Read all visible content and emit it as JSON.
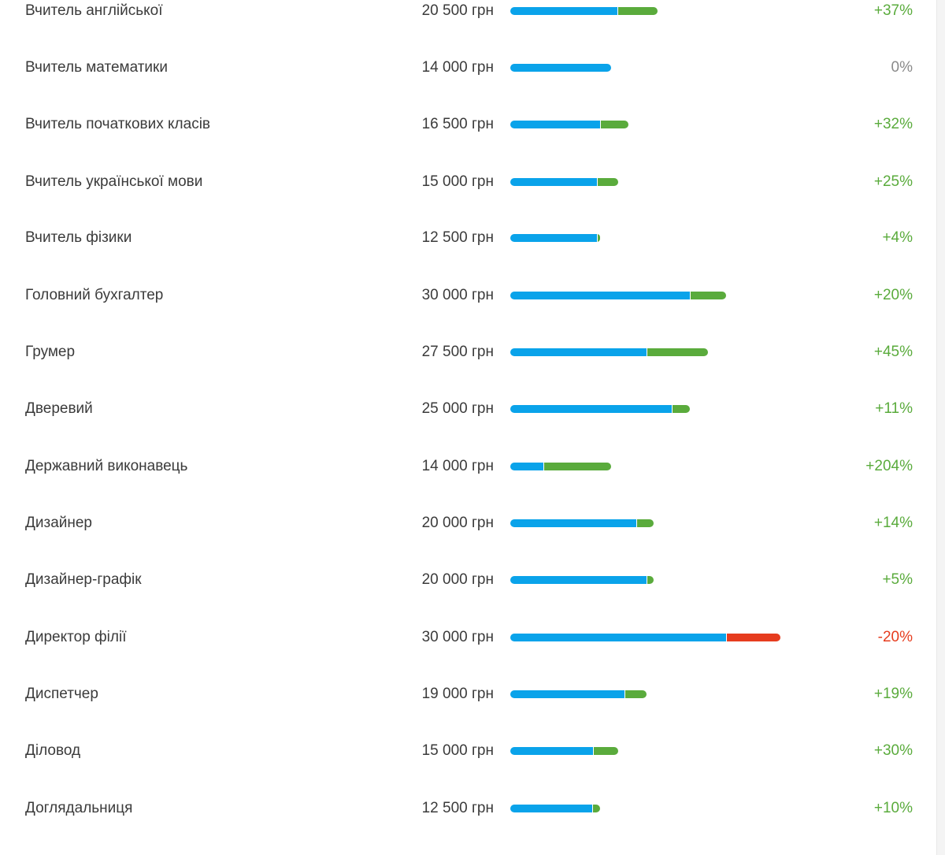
{
  "colors": {
    "base_bar": "#0aa3ea",
    "positive": "#5aab3c",
    "negative": "#e63c1e",
    "neutral": "#8a8a8a"
  },
  "rows": [
    {
      "title": "Вчитель англійської",
      "salary": "20 500 грн",
      "change": "+37%",
      "change_pct": 37
    },
    {
      "title": "Вчитель математики",
      "salary": "14 000 грн",
      "change": "0%",
      "change_pct": 0
    },
    {
      "title": "Вчитель початкових класів",
      "salary": "16 500 грн",
      "change": "+32%",
      "change_pct": 32
    },
    {
      "title": "Вчитель української мови",
      "salary": "15 000 грн",
      "change": "+25%",
      "change_pct": 25
    },
    {
      "title": "Вчитель фізики",
      "salary": "12 500 грн",
      "change": "+4%",
      "change_pct": 4
    },
    {
      "title": "Головний бухгалтер",
      "salary": "30 000 грн",
      "change": "+20%",
      "change_pct": 20
    },
    {
      "title": "Грумер",
      "salary": "27 500 грн",
      "change": "+45%",
      "change_pct": 45
    },
    {
      "title": "Дверевий",
      "salary": "25 000 грн",
      "change": "+11%",
      "change_pct": 11
    },
    {
      "title": "Державний виконавець",
      "salary": "14 000 грн",
      "change": "+204%",
      "change_pct": 204
    },
    {
      "title": "Дизайнер",
      "salary": "20 000 грн",
      "change": "+14%",
      "change_pct": 14
    },
    {
      "title": "Дизайнер-графік",
      "salary": "20 000 грн",
      "change": "+5%",
      "change_pct": 5
    },
    {
      "title": "Директор філії",
      "salary": "30 000 грн",
      "change": "-20%",
      "change_pct": -20
    },
    {
      "title": "Диспетчер",
      "salary": "19 000 грн",
      "change": "+19%",
      "change_pct": 19
    },
    {
      "title": "Діловод",
      "salary": "15 000 грн",
      "change": "+30%",
      "change_pct": 30
    },
    {
      "title": "Доглядальниця",
      "salary": "12 500 грн",
      "change": "+10%",
      "change_pct": 10
    }
  ]
}
